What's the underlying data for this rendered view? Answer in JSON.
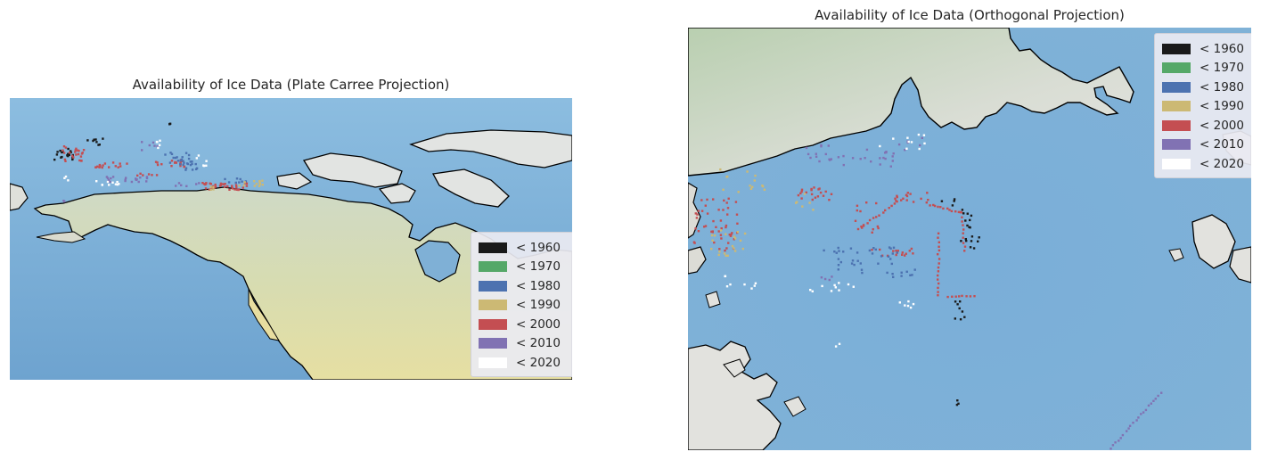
{
  "left": {
    "title": "Availability of Ice Data (Plate Carree Projection)"
  },
  "right": {
    "title": "Availability of Ice Data (Orthogonal Projection)"
  },
  "legend": [
    {
      "label": "< 1960",
      "color": "#1a1a1a"
    },
    {
      "label": "< 1970",
      "color": "#55a868"
    },
    {
      "label": "< 1980",
      "color": "#4c72b0"
    },
    {
      "label": "< 1990",
      "color": "#ccb974"
    },
    {
      "label": "< 2000",
      "color": "#c44e52"
    },
    {
      "label": "< 2010",
      "color": "#8172b3"
    },
    {
      "label": "< 2020",
      "color": "#ffffff"
    }
  ],
  "colors": {
    "ocean": "#7fb0d6",
    "land": "#d9d9cf",
    "coastline": "#000000",
    "background": "#ffffff"
  }
}
